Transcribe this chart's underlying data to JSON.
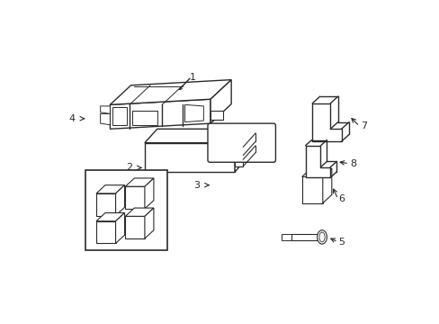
{
  "background_color": "#ffffff",
  "line_color": "#2a2a2a",
  "line_width": 1.0,
  "fig_width": 4.89,
  "fig_height": 3.6,
  "dpi": 100
}
